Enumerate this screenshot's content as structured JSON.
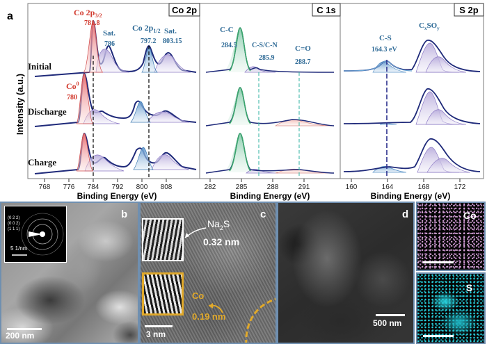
{
  "panel_a": {
    "letter": "a",
    "ylabel": "Intensity (a.u.)",
    "row_labels": [
      "Initial",
      "Discharge",
      "Charge"
    ],
    "co2p": {
      "title": "Co 2p",
      "xlabel": "Binding Energy (eV)",
      "ticks": [
        "768",
        "776",
        "784",
        "792",
        "800",
        "808"
      ],
      "peak_main_prefix": "Co 2p",
      "peak_main_sub": "3/2",
      "peak_main_value": "781.8",
      "sat1_label": "Sat.",
      "sat1_value": "786",
      "peak_half_prefix": "Co 2p",
      "peak_half_sub": "1/2",
      "peak_half_value": "797.2",
      "sat2_label": "Sat.",
      "sat2_value": "803.15",
      "co0_base": "Co",
      "co0_sup": "0",
      "co0_value": "780"
    },
    "c1s": {
      "title": "C 1s",
      "xlabel": "Binding Energy (eV)",
      "ticks": [
        "282",
        "285",
        "288",
        "291"
      ],
      "cc_label": "C-C",
      "cc_value": "284.5",
      "csn_label": "C-S/C-N",
      "csn_value": "285.9",
      "co_label": "C=O",
      "co_value": "288.7"
    },
    "s2p": {
      "title": "S 2p",
      "xlabel": "Binding Energy (eV)",
      "ticks": [
        "160",
        "164",
        "168",
        "172"
      ],
      "cs_label": "C-S",
      "cs_value": "164.3 eV",
      "cxsoy_base": "C",
      "cxsoy_sub1": "x",
      "cxsoy_mid": "SO",
      "cxsoy_sub2": "y"
    }
  },
  "panel_b": {
    "letter": "b",
    "scale_bar": "200 nm",
    "saed_rings": [
      "(0 2 2)",
      "(0 0 2)",
      "(1 1 1)"
    ],
    "saed_scale": "5 1/nm"
  },
  "panel_c": {
    "letter": "c",
    "na2s_base": "Na",
    "na2s_sub": "2",
    "na2s_end": "S",
    "na2s_spacing": "0.32 nm",
    "co_label": "Co",
    "co_spacing": "0.19 nm",
    "scale_bar": "3 nm"
  },
  "panel_d": {
    "letter": "d",
    "scale_bar": "500 nm",
    "map_co": "Co",
    "map_s": "S"
  },
  "colors": {
    "co_label_red": "#d23a2e",
    "label_blue": "#2e6a96",
    "axis_blue": "#1f2a7a",
    "fft_gold": "#e1a92a",
    "s_map_cyan": "#28d0dc",
    "co_map_pink": "#d7a3d8"
  }
}
